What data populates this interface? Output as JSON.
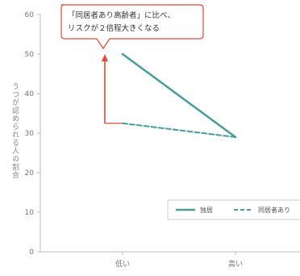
{
  "chart_data": {
    "type": "line",
    "categories": [
      "低い",
      "高い"
    ],
    "xlabel": "",
    "ylabel": "うつが認められる人の割合",
    "ylim": [
      0,
      60
    ],
    "yticks": [
      0,
      10,
      20,
      30,
      40,
      50,
      60
    ],
    "grid": false,
    "legend_position": "bottom-right",
    "series": [
      {
        "name": "独居",
        "values": [
          50,
          29
        ],
        "color": "#4a9b9b",
        "dash": "solid"
      },
      {
        "name": "同居者あり",
        "values": [
          32.5,
          29
        ],
        "color": "#4a9b9b",
        "dash": "dashed"
      }
    ],
    "annotation": {
      "lines": [
        "「同居者あり高齢者」に比べ、",
        "リスクが２倍程大きくなる"
      ],
      "arrow_from": 32.5,
      "arrow_to": 50,
      "arrow_color": "#e04a3a",
      "box_border_color": "#e04a3a"
    }
  }
}
